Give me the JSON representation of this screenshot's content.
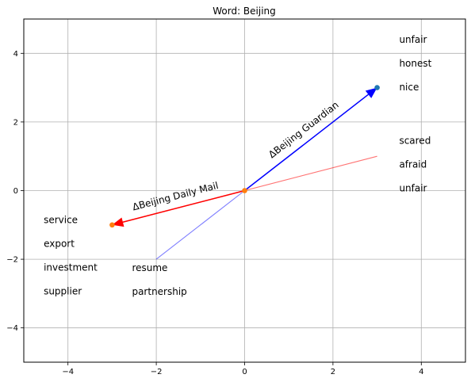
{
  "chart_data": {
    "type": "scatter",
    "title": "Word: Beijing",
    "xlabel": "",
    "ylabel": "",
    "xlim": [
      -5,
      5
    ],
    "ylim": [
      -5,
      5
    ],
    "xticks": [
      -4,
      -2,
      0,
      2,
      4
    ],
    "yticks": [
      -4,
      -2,
      0,
      2,
      4
    ],
    "grid": true,
    "points": [
      {
        "name": "origin",
        "x": 0,
        "y": 0,
        "color": "#ff7f0e"
      },
      {
        "name": "guardian-point",
        "x": 3,
        "y": 3,
        "color": "#1f77b4"
      },
      {
        "name": "dailymail-point",
        "x": -3,
        "y": -1,
        "color": "#ff7f0e"
      }
    ],
    "arrows": [
      {
        "name": "guardian-arrow",
        "label": "ΔBeijing Guardian",
        "from": [
          0,
          0
        ],
        "to": [
          3,
          3
        ],
        "color": "#0000ff"
      },
      {
        "name": "dailymail-arrow",
        "label": "ΔBeijing Daily Mail",
        "from": [
          0,
          0
        ],
        "to": [
          -3,
          -1
        ],
        "color": "#ff0000"
      }
    ],
    "lines": [
      {
        "name": "red-direction-line",
        "from": [
          -3,
          -1
        ],
        "to": [
          3,
          1
        ],
        "color": "#ff0000",
        "opacity": 0.55
      },
      {
        "name": "blue-direction-line",
        "from": [
          -2,
          -2
        ],
        "to": [
          0,
          0
        ],
        "color": "#0000ff",
        "opacity": 0.5
      }
    ],
    "word_groups": [
      {
        "name": "guardian-positive-words",
        "x": 3.5,
        "y": 4.4,
        "words": [
          "unfair",
          "honest",
          "nice"
        ]
      },
      {
        "name": "guardian-negative-words",
        "x": 3.5,
        "y": 1.45,
        "words": [
          "scared",
          "afraid",
          "unfair"
        ]
      },
      {
        "name": "dailymail-words-left",
        "x": -4.55,
        "y": -0.85,
        "words": [
          "service",
          "export",
          "investment",
          "supplier"
        ]
      },
      {
        "name": "dailymail-words-right",
        "x": -2.55,
        "y": -2.25,
        "words": [
          "resume",
          "partnership"
        ]
      }
    ]
  }
}
